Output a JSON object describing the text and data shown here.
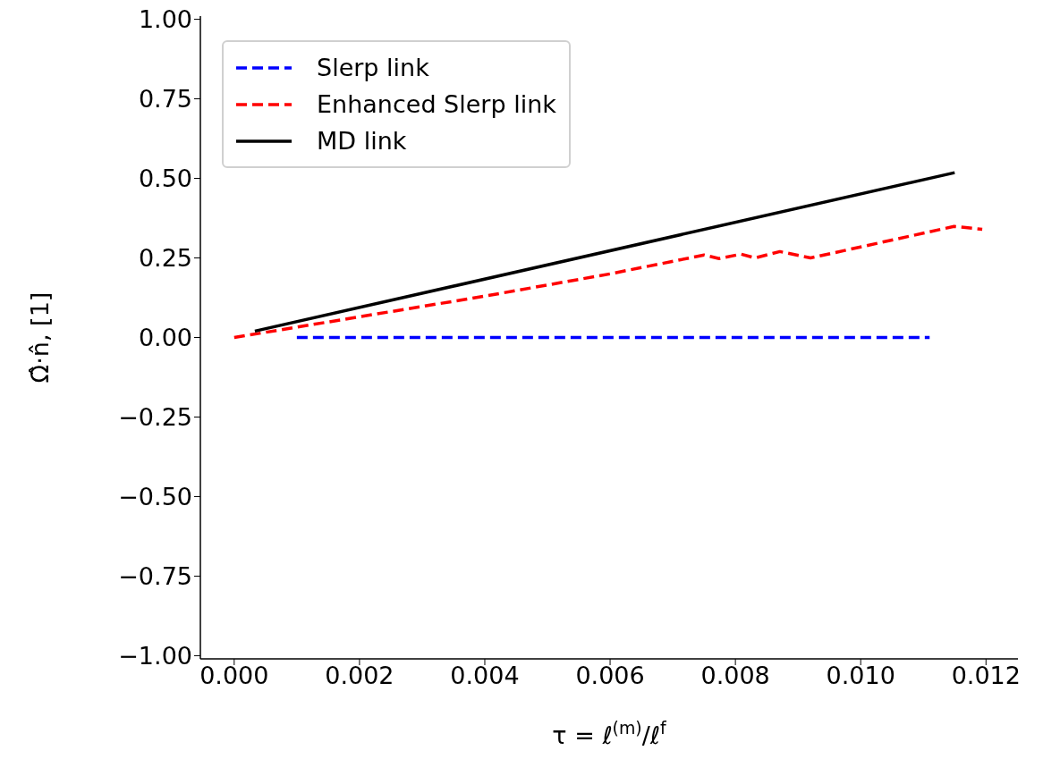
{
  "chart_data": {
    "type": "line",
    "xlabel": "τ = ℓ$^{(m)}$/ℓ$^{f}$",
    "ylabel": "Ω̂·n̂, [1]",
    "xlim": [
      -0.00054,
      0.01251
    ],
    "ylim": [
      -1.01,
      1.01
    ],
    "xticks": [
      {
        "value": 0,
        "label": "0.000"
      },
      {
        "value": 0.002,
        "label": "0.002"
      },
      {
        "value": 0.004,
        "label": "0.004"
      },
      {
        "value": 0.006,
        "label": "0.006"
      },
      {
        "value": 0.008,
        "label": "0.008"
      },
      {
        "value": 0.01,
        "label": "0.010"
      },
      {
        "value": 0.012,
        "label": "0.012"
      }
    ],
    "yticks": [
      {
        "value": -1,
        "label": "−1.00"
      },
      {
        "value": -0.75,
        "label": "−0.75"
      },
      {
        "value": -0.5,
        "label": "−0.50"
      },
      {
        "value": -0.25,
        "label": "−0.25"
      },
      {
        "value": 0,
        "label": "0.00"
      },
      {
        "value": 0.25,
        "label": "0.25"
      },
      {
        "value": 0.5,
        "label": "0.50"
      },
      {
        "value": 0.75,
        "label": "0.75"
      },
      {
        "value": 1,
        "label": "1.00"
      }
    ],
    "grid": false,
    "legend": "top left",
    "marker": "none",
    "series": [
      {
        "name": "Slerp link",
        "color": "#0000ff",
        "line_style": "dashed",
        "x": [
          0.001,
          0.0111
        ],
        "values": [
          0,
          0
        ]
      },
      {
        "name": "Enhanced Slerp link",
        "color": "#ff0000",
        "line_style": "dashed",
        "x": [
          0,
          0.002,
          0.004,
          0.006,
          0.0075,
          0.00774,
          0.00809,
          0.00831,
          0.00871,
          0.0092,
          0.01149,
          0.01194
        ],
        "values": [
          0,
          0.065,
          0.13,
          0.2,
          0.259,
          0.248,
          0.262,
          0.25,
          0.27,
          0.25,
          0.349,
          0.34
        ]
      },
      {
        "name": "MD link",
        "color": "#000000",
        "line_style": "solid",
        "x": [
          0.00033,
          0.0115
        ],
        "values": [
          0.02,
          0.518
        ]
      }
    ]
  }
}
